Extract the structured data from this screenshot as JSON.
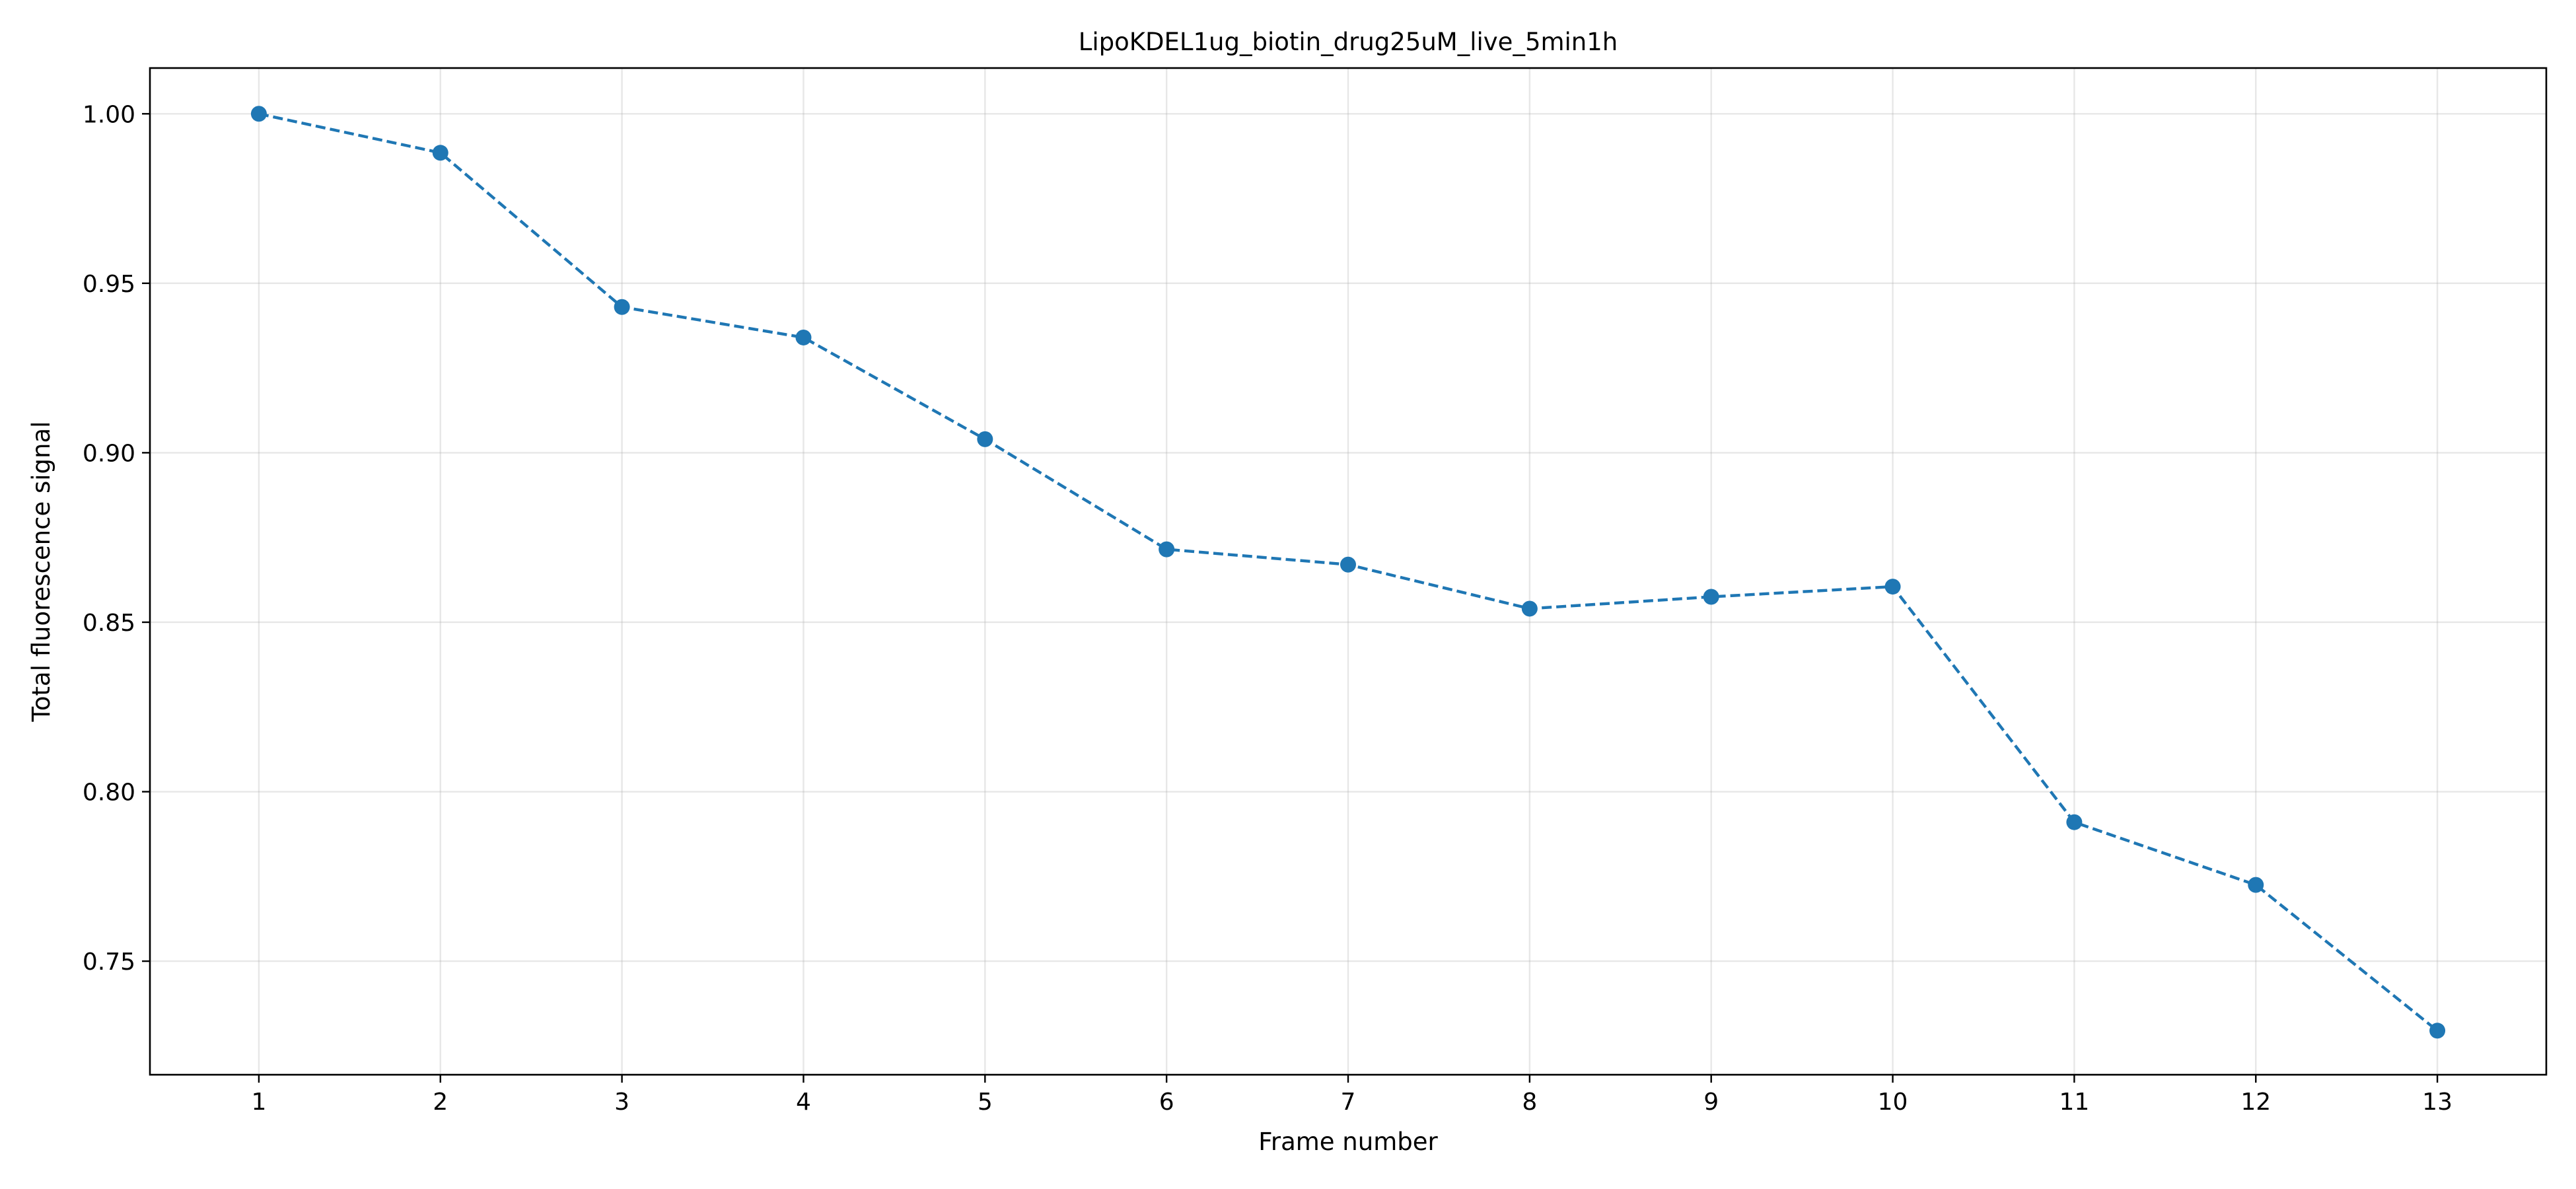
{
  "chart_data": {
    "type": "line",
    "title": "LipoKDEL1ug_biotin_drug25uM_live_5min1h",
    "xlabel": "Frame number",
    "ylabel": "Total fluorescence signal",
    "x": [
      1,
      2,
      3,
      4,
      5,
      6,
      7,
      8,
      9,
      10,
      11,
      12,
      13
    ],
    "x_ticks": [
      "1",
      "2",
      "3",
      "4",
      "5",
      "6",
      "7",
      "8",
      "9",
      "10",
      "11",
      "12",
      "13"
    ],
    "xlim": [
      0.4,
      13.6
    ],
    "ylim": [
      0.7165,
      1.0135
    ],
    "y_ticks": [
      "0.75",
      "0.80",
      "0.85",
      "0.90",
      "0.95",
      "1.00"
    ],
    "grid": true,
    "line_style": "dashed",
    "marker": "circle",
    "series": [
      {
        "color": "#1f77b4",
        "values": [
          1.0,
          0.9885,
          0.943,
          0.934,
          0.904,
          0.8715,
          0.867,
          0.854,
          0.8575,
          0.8605,
          0.791,
          0.7725,
          0.7295
        ]
      }
    ]
  }
}
